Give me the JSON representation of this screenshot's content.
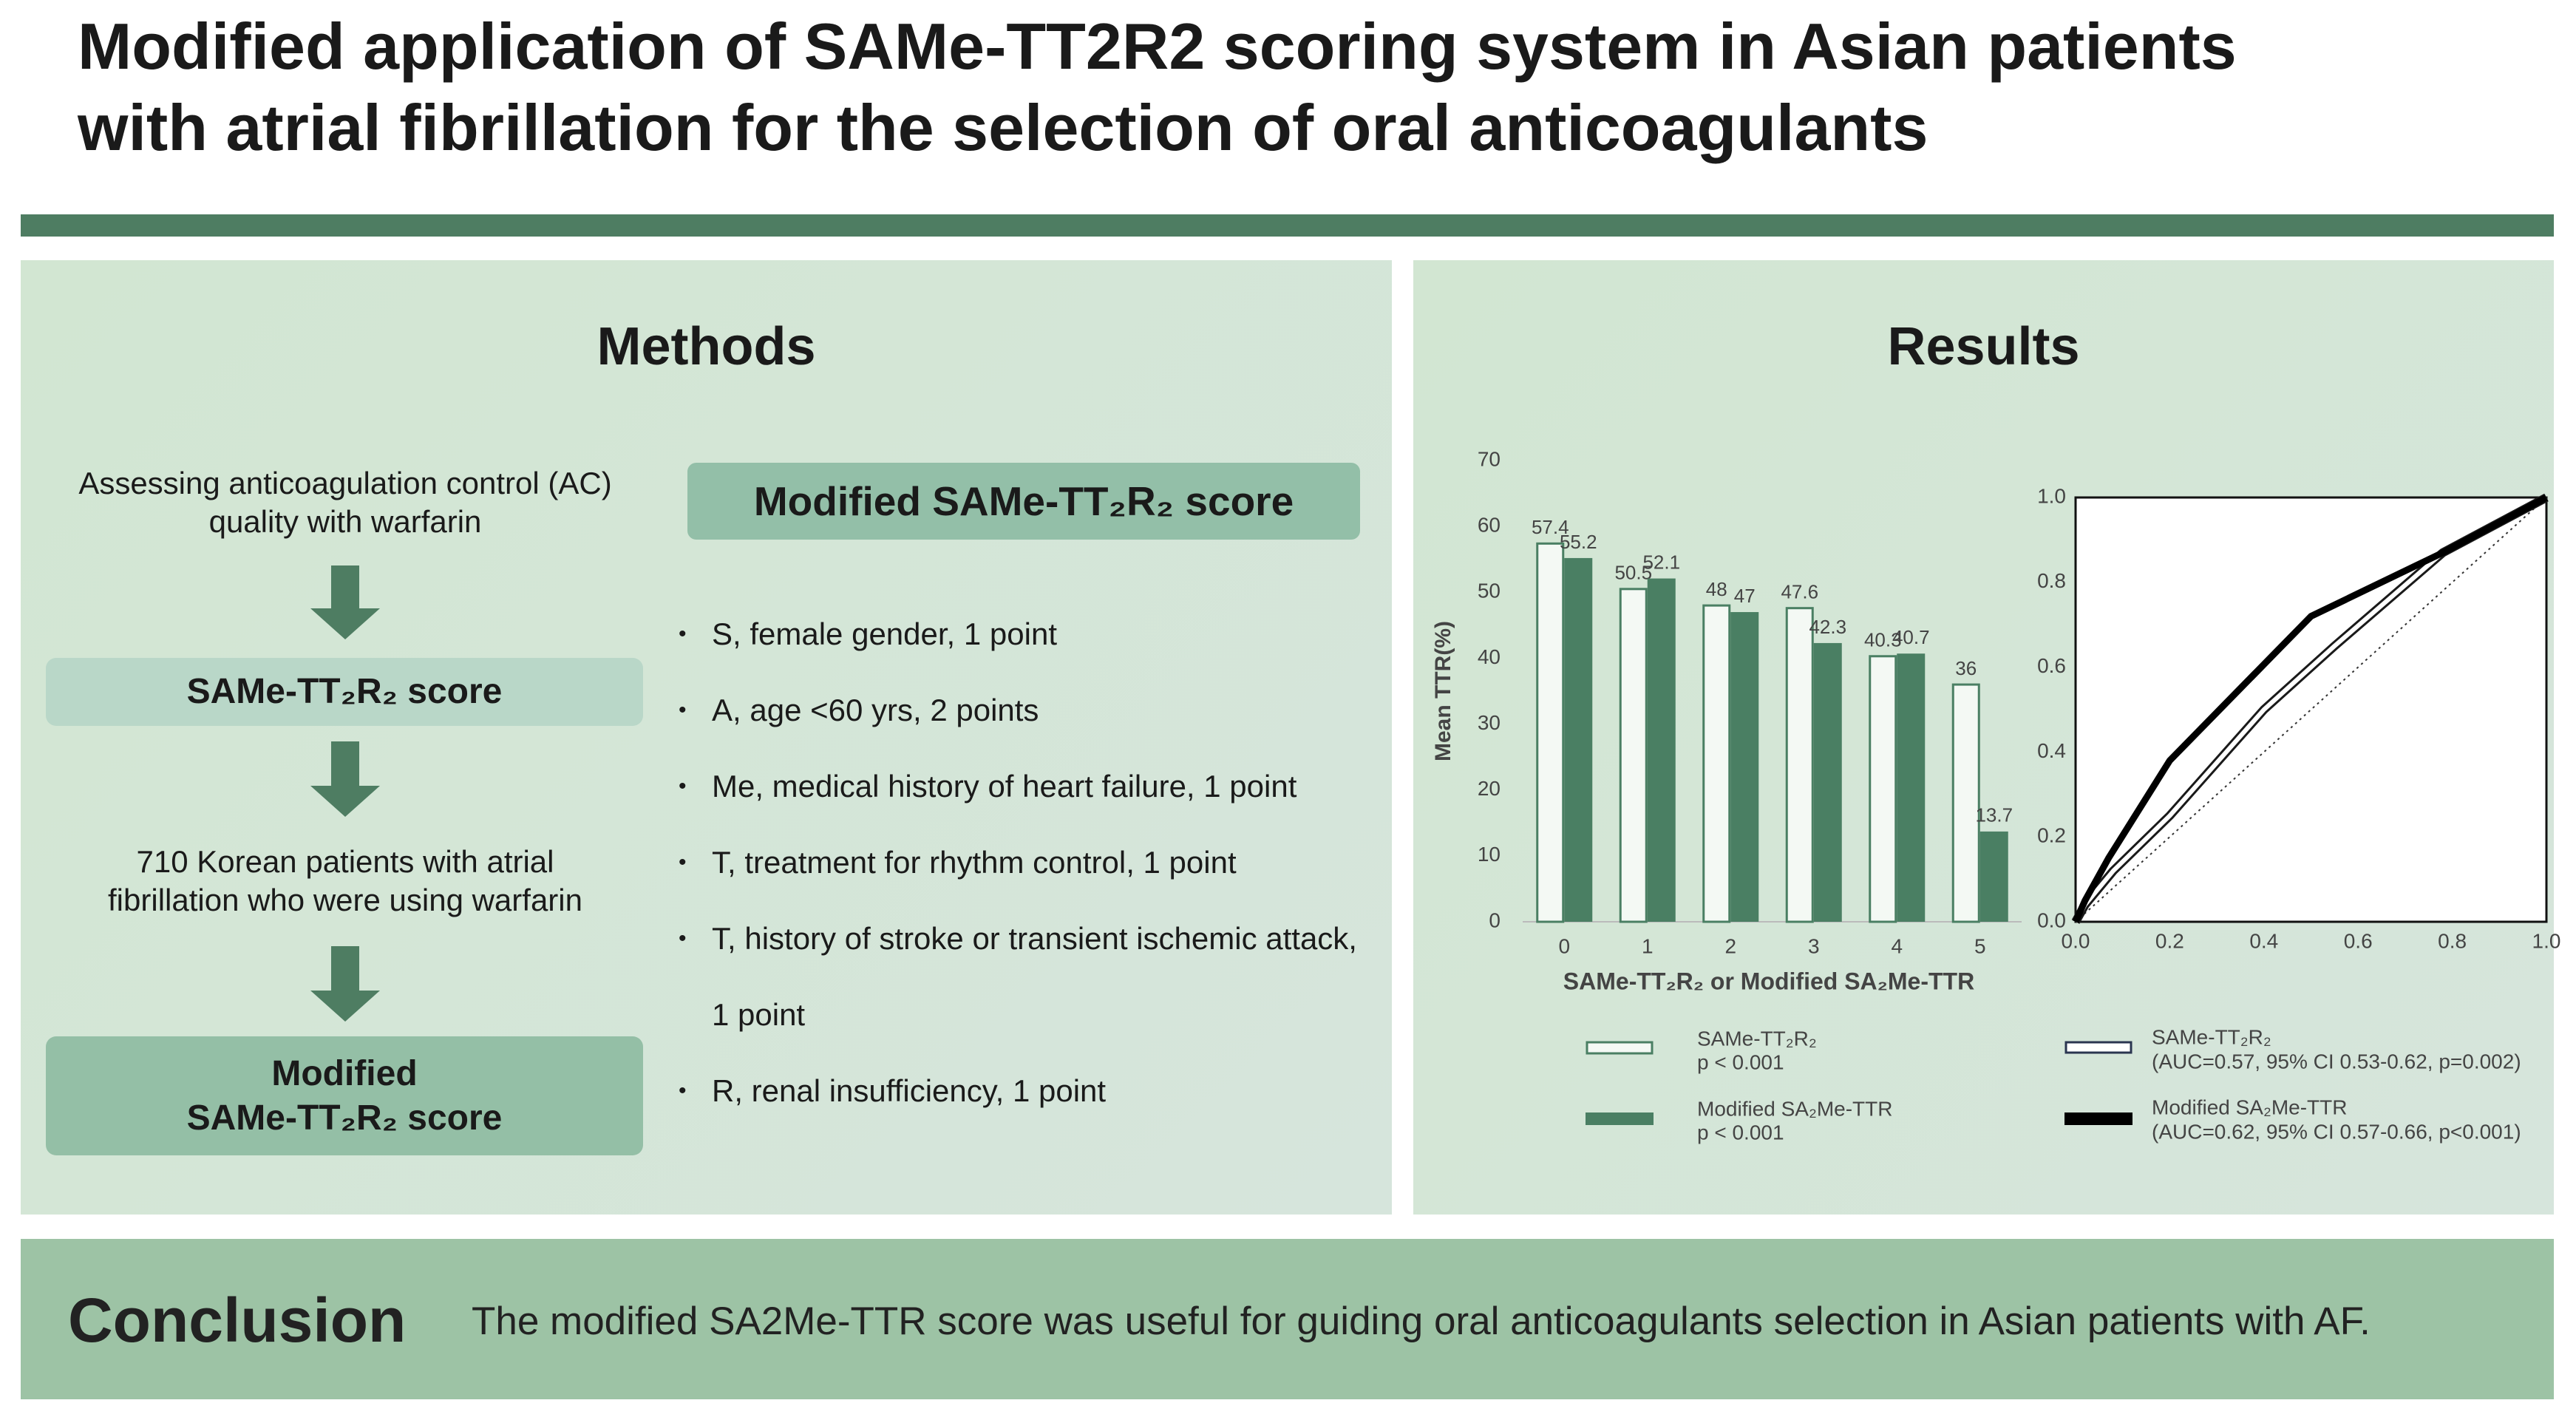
{
  "header": {
    "title": [
      "Modified application of SAMe-TT2R2 scoring system in Asian patients",
      "with atrial fibrillation for the selection of oral anticoagulants"
    ]
  },
  "methods": {
    "title": "Methods",
    "flow": [
      {
        "kind": "text",
        "lines": [
          "Assessing anticoagulation control (AC)",
          "quality with warfarin"
        ]
      },
      {
        "kind": "box",
        "lines": [
          "SAMe-TT₂R₂ score"
        ]
      },
      {
        "kind": "text",
        "lines": [
          "710 Korean patients with atrial",
          "fibrillation who were using warfarin"
        ]
      },
      {
        "kind": "box",
        "lines": [
          "Modified",
          "SAMe-TT₂R₂ score"
        ]
      }
    ],
    "score_title": "Modified SAMe-TT₂R₂ score",
    "criteria": [
      "S, female gender, 1 point",
      "A, age <60 yrs, 2 points",
      "Me, medical history of heart failure, 1 point",
      "T, treatment for rhythm control, 1 point",
      "T, history of stroke or transient ischemic attack, 1 point",
      "R, renal insufficiency, 1 point"
    ]
  },
  "results": {
    "title": "Results"
  },
  "chart_data": [
    {
      "type": "bar",
      "x_label": "SAMe-TT₂R₂ or Modified SA₂Me-TTR",
      "y_label": "Mean TTR(%)",
      "categories": [
        "0",
        "1",
        "2",
        "3",
        "4",
        "5"
      ],
      "series": [
        {
          "name": "SAMe-TT₂R₂",
          "p_value": "p < 0.001",
          "color": "#4a7f63",
          "style": "hollow",
          "values": [
            57.4,
            50.5,
            48,
            47.6,
            40.3,
            36
          ]
        },
        {
          "name": "Modified SA₂Me-TTR",
          "p_value": "p < 0.001",
          "color": "#4a7f63",
          "style": "filled",
          "values": [
            55.2,
            52.1,
            47,
            42.3,
            40.7,
            13.7
          ]
        }
      ],
      "ylim": [
        0,
        70
      ],
      "yticks": [
        0,
        10,
        20,
        30,
        40,
        50,
        60,
        70
      ]
    },
    {
      "type": "line",
      "xlim": [
        0,
        1
      ],
      "ylim": [
        0,
        1
      ],
      "xticks": [
        {
          "value": 0,
          "label": "0.0"
        },
        {
          "value": 0.2,
          "label": "0.2"
        },
        {
          "value": 0.4,
          "label": "0.4"
        },
        {
          "value": 0.6,
          "label": "0.6"
        },
        {
          "value": 0.8,
          "label": "0.8"
        },
        {
          "value": 1,
          "label": "1.0"
        }
      ],
      "yticks": [
        {
          "value": 0,
          "label": "0.0"
        },
        {
          "value": 0.2,
          "label": "0.2"
        },
        {
          "value": 0.4,
          "label": "0.4"
        },
        {
          "value": 0.6,
          "label": "0.6"
        },
        {
          "value": 0.8,
          "label": "0.8"
        },
        {
          "value": 1,
          "label": "1.0"
        }
      ],
      "series": [
        {
          "name": "SAMe-TT₂R₂",
          "stats": "(AUC=0.57, 95% CI 0.53-0.62, p=0.002)",
          "color": "#1a1a1a",
          "style": "outlined",
          "x": [
            0,
            0.02,
            0.08,
            0.2,
            0.4,
            0.55,
            0.78,
            1
          ],
          "values": [
            0,
            0.04,
            0.12,
            0.25,
            0.5,
            0.65,
            0.87,
            1
          ]
        },
        {
          "name": "Modified SA₂Me-TTR",
          "stats": "(AUC=0.62, 95% CI 0.57-0.66, p<0.001)",
          "color": "#000000",
          "style": "thick",
          "x": [
            0,
            0.02,
            0.07,
            0.2,
            0.5,
            0.78,
            1
          ],
          "values": [
            0,
            0.05,
            0.15,
            0.38,
            0.72,
            0.87,
            1
          ]
        }
      ]
    }
  ],
  "conclusion": {
    "label": "Conclusion",
    "text": "The modified SA2Me-TTR score was useful for guiding oral anticoagulants selection in Asian patients with AF."
  }
}
